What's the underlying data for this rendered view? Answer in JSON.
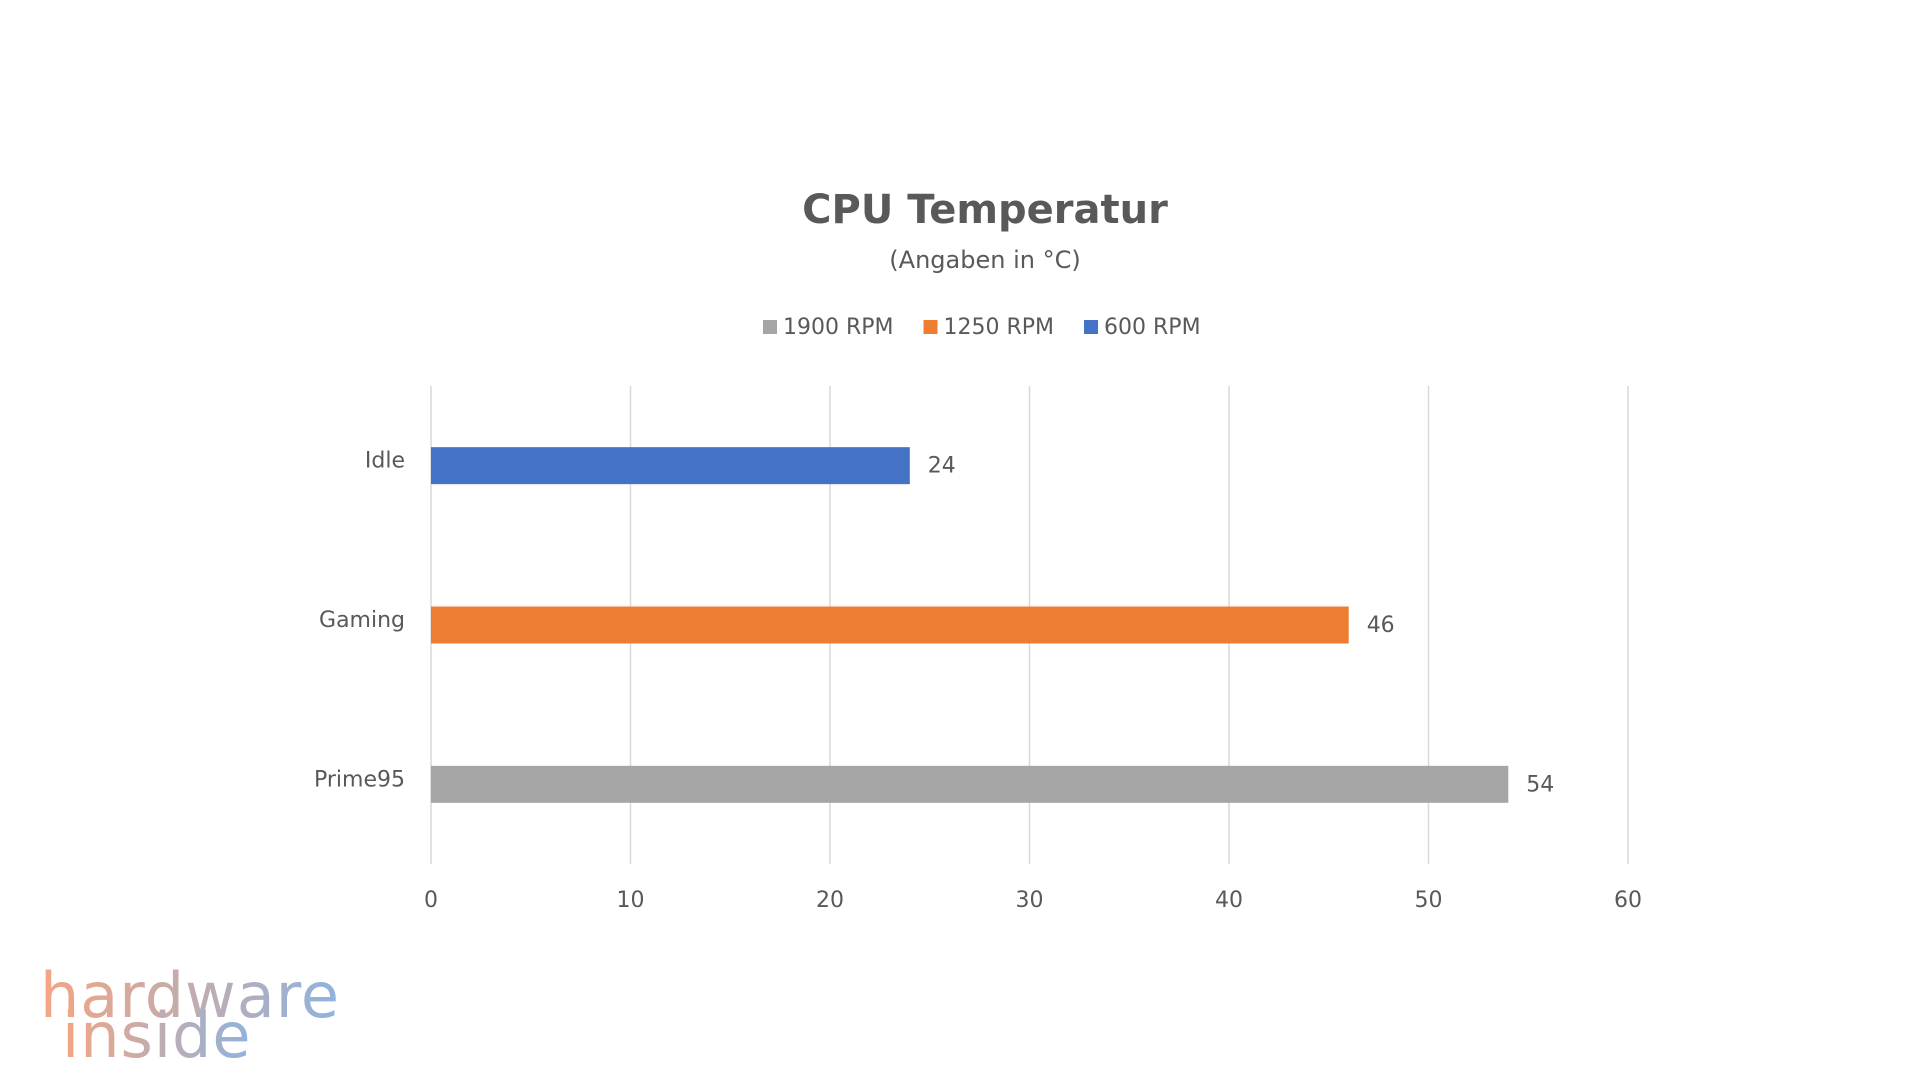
{
  "chart_data": {
    "type": "hbar",
    "title": "CPU Temperatur",
    "subtitle": "(Angaben in °C)",
    "categories": [
      "Idle",
      "Gaming",
      "Prime95"
    ],
    "series": [
      {
        "name": "1900 RPM",
        "color": "#a5a5a5",
        "values": [
          null,
          null,
          54
        ]
      },
      {
        "name": "1250 RPM",
        "color": "#ed7d31",
        "values": [
          null,
          46,
          null
        ]
      },
      {
        "name": "600 RPM",
        "color": "#4472c4",
        "values": [
          24,
          null,
          null
        ]
      }
    ],
    "xlim": [
      0,
      60
    ],
    "xticks": [
      0,
      10,
      20,
      30,
      40,
      50,
      60
    ],
    "grid": true,
    "legend": "top",
    "annotations": [
      "hardware",
      "inside"
    ]
  }
}
